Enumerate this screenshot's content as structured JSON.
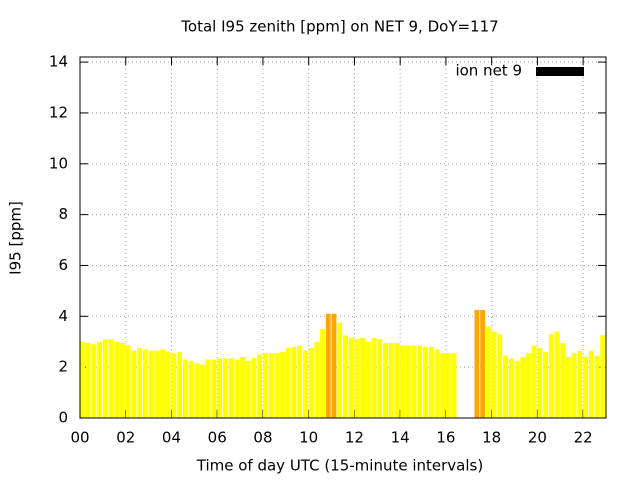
{
  "chart_data": {
    "type": "bar",
    "title": "Total I95 zenith [ppm] on NET 9, DoY=117",
    "xlabel": "Time of day UTC (15-minute intervals)",
    "ylabel": "I95 [ppm]",
    "xlim": [
      0,
      23
    ],
    "ylim": [
      0,
      14.2
    ],
    "xticks": [
      {
        "value": 0,
        "label": "00"
      },
      {
        "value": 2,
        "label": "02"
      },
      {
        "value": 4,
        "label": "04"
      },
      {
        "value": 6,
        "label": "06"
      },
      {
        "value": 8,
        "label": "08"
      },
      {
        "value": 10,
        "label": "10"
      },
      {
        "value": 12,
        "label": "12"
      },
      {
        "value": 14,
        "label": "14"
      },
      {
        "value": 16,
        "label": "16"
      },
      {
        "value": 18,
        "label": "18"
      },
      {
        "value": 20,
        "label": "20"
      },
      {
        "value": 22,
        "label": "22"
      }
    ],
    "yticks": [
      0,
      2,
      4,
      6,
      8,
      10,
      12,
      14
    ],
    "grid": true,
    "legend": "top right",
    "x": [
      0,
      0.25,
      0.5,
      0.75,
      1,
      1.25,
      1.5,
      1.75,
      2,
      2.25,
      2.5,
      2.75,
      3,
      3.25,
      3.5,
      3.75,
      4,
      4.25,
      4.5,
      4.75,
      5,
      5.25,
      5.5,
      5.75,
      6,
      6.25,
      6.5,
      6.75,
      7,
      7.25,
      7.5,
      7.75,
      8,
      8.25,
      8.5,
      8.75,
      9,
      9.25,
      9.5,
      9.75,
      10,
      10.25,
      10.5,
      10.75,
      11,
      11.25,
      11.5,
      11.75,
      12,
      12.25,
      12.5,
      12.75,
      13,
      13.25,
      13.5,
      13.75,
      14,
      14.25,
      14.5,
      14.75,
      15,
      15.25,
      15.5,
      15.75,
      16,
      16.25,
      16.5,
      16.75,
      17,
      17.25,
      17.5,
      17.75,
      18,
      18.25,
      18.5,
      18.75,
      19,
      19.25,
      19.5,
      19.75,
      20,
      20.25,
      20.5,
      20.75,
      21,
      21.25,
      21.5,
      21.75,
      22,
      22.25,
      22.5,
      22.75
    ],
    "series": [
      {
        "name": "ion net 9",
        "color": "#000000",
        "values": [
          3.0,
          2.95,
          2.9,
          3.0,
          3.1,
          3.1,
          3.0,
          2.95,
          2.85,
          2.65,
          2.75,
          2.7,
          2.65,
          2.65,
          2.7,
          2.6,
          2.55,
          2.6,
          2.3,
          2.25,
          2.15,
          2.1,
          2.3,
          2.3,
          2.35,
          2.35,
          2.35,
          2.3,
          2.4,
          2.25,
          2.35,
          2.5,
          2.55,
          2.55,
          2.55,
          2.6,
          2.75,
          2.8,
          2.85,
          2.65,
          2.75,
          3.0,
          3.5,
          4.1,
          4.1,
          3.75,
          3.25,
          3.15,
          3.1,
          3.15,
          3.0,
          3.15,
          3.1,
          2.95,
          2.95,
          2.95,
          2.85,
          2.85,
          2.85,
          2.85,
          2.8,
          2.8,
          2.7,
          2.55,
          2.55,
          2.55,
          null,
          null,
          null,
          4.25,
          4.25,
          3.6,
          3.4,
          3.3,
          2.45,
          2.35,
          2.25,
          2.4,
          2.55,
          2.85,
          2.75,
          2.6,
          3.3,
          3.4,
          2.95,
          2.4,
          2.55,
          2.65,
          2.4,
          2.65,
          2.45,
          3.25
        ],
        "bar_colors": [
          "#ffff00",
          "#ffff00",
          "#ffff00",
          "#ffff00",
          "#ffff00",
          "#ffff00",
          "#ffff00",
          "#ffff00",
          "#ffff00",
          "#ffff00",
          "#ffff00",
          "#ffff00",
          "#ffff00",
          "#ffff00",
          "#ffff00",
          "#ffff00",
          "#ffff00",
          "#ffff00",
          "#ffff00",
          "#ffff00",
          "#ffff00",
          "#ffff00",
          "#ffff00",
          "#ffff00",
          "#ffff00",
          "#ffff00",
          "#ffff00",
          "#ffff00",
          "#ffff00",
          "#ffff00",
          "#ffff00",
          "#ffff00",
          "#ffff00",
          "#ffff00",
          "#ffff00",
          "#ffff00",
          "#ffff00",
          "#ffff00",
          "#ffff00",
          "#ffff00",
          "#ffff00",
          "#ffff00",
          "#ffff00",
          "#ffa500",
          "#ffa500",
          "#ffff00",
          "#ffff00",
          "#ffff00",
          "#ffff00",
          "#ffff00",
          "#ffff00",
          "#ffff00",
          "#ffff00",
          "#ffff00",
          "#ffff00",
          "#ffff00",
          "#ffff00",
          "#ffff00",
          "#ffff00",
          "#ffff00",
          "#ffff00",
          "#ffff00",
          "#ffff00",
          "#ffff00",
          "#ffff00",
          "#ffff00",
          "#ffff00",
          "#ffff00",
          "#ffff00",
          "#ffa500",
          "#ffa500",
          "#ffff00",
          "#ffff00",
          "#ffff00",
          "#ffff00",
          "#ffff00",
          "#ffff00",
          "#ffff00",
          "#ffff00",
          "#ffff00",
          "#ffff00",
          "#ffff00",
          "#ffff00",
          "#ffff00",
          "#ffff00",
          "#ffff00",
          "#ffff00",
          "#ffff00",
          "#ffff00",
          "#ffff00",
          "#ffff00",
          "#ffff00"
        ]
      }
    ]
  }
}
